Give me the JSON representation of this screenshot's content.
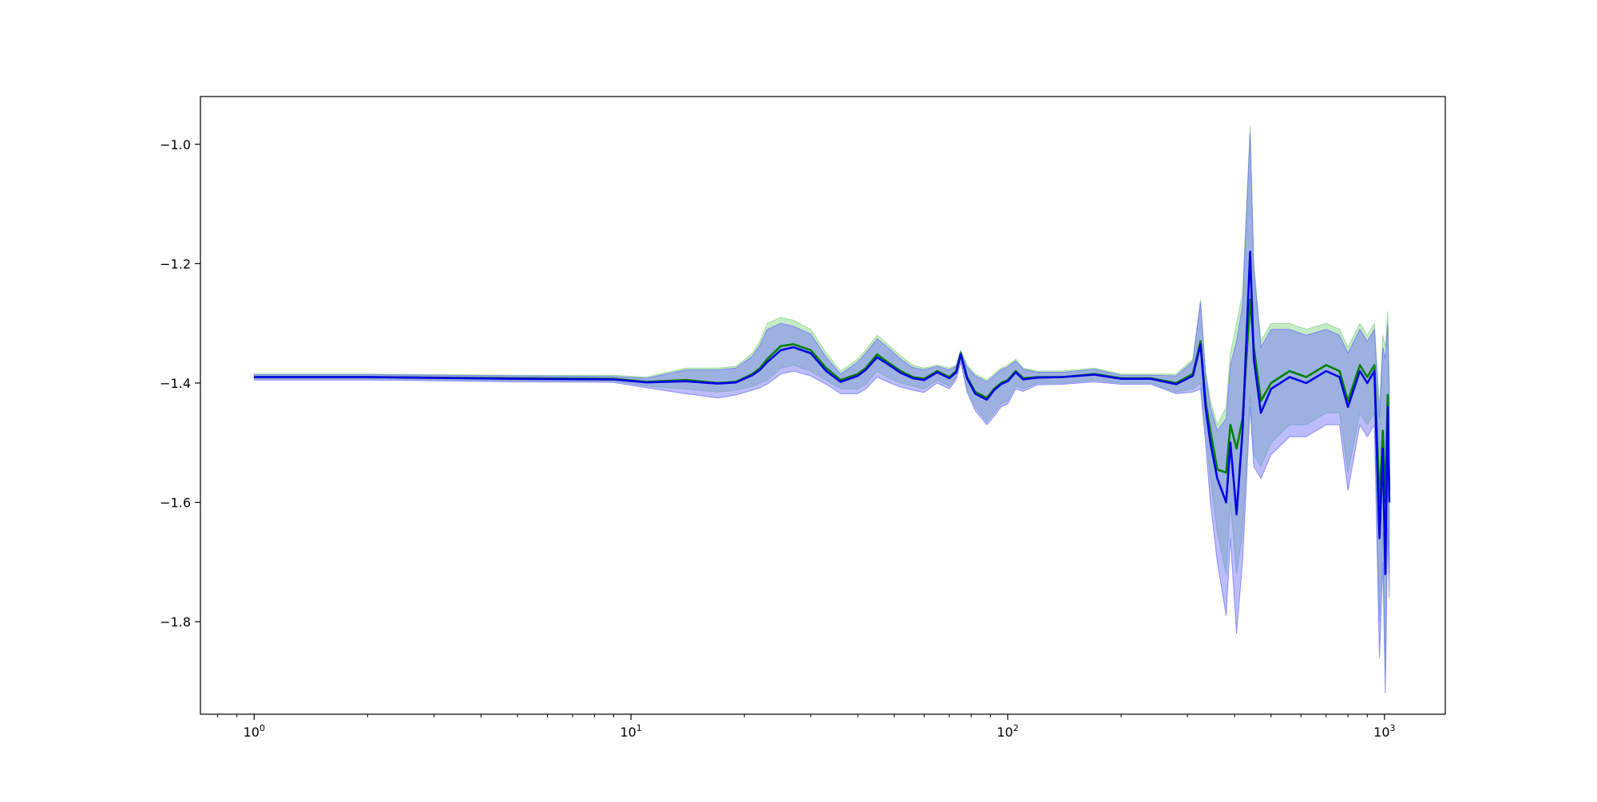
{
  "chart_data": {
    "type": "line",
    "title": "",
    "xlabel": "",
    "ylabel": "",
    "xscale": "log",
    "xlim": [
      0.72,
      1450
    ],
    "ylim": [
      -1.955,
      -0.92
    ],
    "grid": false,
    "x_ticks": [
      {
        "value": 1,
        "base": "10",
        "exp": "0"
      },
      {
        "value": 10,
        "base": "10",
        "exp": "1"
      },
      {
        "value": 100,
        "base": "10",
        "exp": "2"
      },
      {
        "value": 1000,
        "base": "10",
        "exp": "3"
      }
    ],
    "y_ticks": [
      {
        "value": -1.0,
        "label": "−1.0"
      },
      {
        "value": -1.2,
        "label": "−1.2"
      },
      {
        "value": -1.4,
        "label": "−1.4"
      },
      {
        "value": -1.6,
        "label": "−1.6"
      },
      {
        "value": -1.8,
        "label": "−1.8"
      }
    ],
    "colors": {
      "series_green": "#008000",
      "series_blue": "#0000e6",
      "band_green": "#7fd27f",
      "band_blue": "#6a6aff",
      "band_overlap": "#4f74b0"
    },
    "series": [
      {
        "color": "#008000",
        "x": [
          1,
          2,
          5,
          9,
          11,
          14,
          17,
          19,
          21,
          22,
          23,
          25,
          27,
          30,
          33,
          36,
          40,
          42,
          45,
          48,
          52,
          56,
          60,
          65,
          70,
          73,
          75,
          78,
          82,
          88,
          92,
          96,
          100,
          105,
          110,
          120,
          140,
          170,
          200,
          240,
          280,
          310,
          325,
          335,
          345,
          360,
          380,
          390,
          405,
          420,
          440,
          450,
          470,
          500,
          560,
          620,
          700,
          760,
          800,
          860,
          900,
          940,
          970,
          990,
          1005,
          1020,
          1030
        ],
        "y": [
          -1.39,
          -1.39,
          -1.392,
          -1.393,
          -1.398,
          -1.395,
          -1.4,
          -1.398,
          -1.385,
          -1.375,
          -1.36,
          -1.338,
          -1.335,
          -1.345,
          -1.375,
          -1.395,
          -1.385,
          -1.375,
          -1.352,
          -1.365,
          -1.38,
          -1.39,
          -1.393,
          -1.38,
          -1.39,
          -1.38,
          -1.35,
          -1.39,
          -1.415,
          -1.425,
          -1.41,
          -1.4,
          -1.395,
          -1.38,
          -1.392,
          -1.39,
          -1.39,
          -1.385,
          -1.392,
          -1.392,
          -1.4,
          -1.385,
          -1.33,
          -1.43,
          -1.48,
          -1.545,
          -1.55,
          -1.47,
          -1.51,
          -1.46,
          -1.26,
          -1.34,
          -1.43,
          -1.4,
          -1.38,
          -1.39,
          -1.37,
          -1.38,
          -1.43,
          -1.37,
          -1.39,
          -1.37,
          -1.6,
          -1.48,
          -1.6,
          -1.42,
          -1.58
        ]
      },
      {
        "color": "#0000e6",
        "x": [
          1,
          2,
          5,
          9,
          11,
          14,
          17,
          19,
          21,
          22,
          23,
          25,
          27,
          30,
          33,
          36,
          40,
          42,
          45,
          48,
          52,
          56,
          60,
          65,
          70,
          73,
          75,
          78,
          82,
          88,
          92,
          96,
          100,
          105,
          110,
          120,
          140,
          170,
          200,
          240,
          280,
          310,
          325,
          335,
          345,
          360,
          380,
          390,
          405,
          420,
          440,
          450,
          470,
          500,
          560,
          620,
          700,
          760,
          800,
          860,
          900,
          940,
          970,
          990,
          1005,
          1020,
          1030
        ],
        "y": [
          -1.39,
          -1.39,
          -1.393,
          -1.394,
          -1.399,
          -1.397,
          -1.401,
          -1.399,
          -1.387,
          -1.378,
          -1.365,
          -1.345,
          -1.34,
          -1.35,
          -1.38,
          -1.398,
          -1.388,
          -1.378,
          -1.357,
          -1.368,
          -1.383,
          -1.392,
          -1.395,
          -1.382,
          -1.392,
          -1.382,
          -1.352,
          -1.392,
          -1.418,
          -1.428,
          -1.412,
          -1.402,
          -1.397,
          -1.382,
          -1.394,
          -1.391,
          -1.39,
          -1.386,
          -1.393,
          -1.393,
          -1.402,
          -1.388,
          -1.335,
          -1.44,
          -1.5,
          -1.56,
          -1.6,
          -1.5,
          -1.62,
          -1.48,
          -1.18,
          -1.36,
          -1.45,
          -1.41,
          -1.39,
          -1.4,
          -1.38,
          -1.39,
          -1.44,
          -1.38,
          -1.4,
          -1.38,
          -1.66,
          -1.51,
          -1.72,
          -1.44,
          -1.6
        ]
      }
    ],
    "bands": [
      {
        "color": "#7fd27f",
        "x": [
          1,
          2,
          5,
          9,
          11,
          14,
          17,
          19,
          21,
          22,
          23,
          25,
          27,
          30,
          33,
          36,
          40,
          42,
          45,
          48,
          52,
          56,
          60,
          65,
          70,
          73,
          75,
          78,
          82,
          88,
          92,
          96,
          100,
          105,
          110,
          120,
          140,
          170,
          200,
          240,
          280,
          310,
          325,
          335,
          345,
          360,
          380,
          390,
          405,
          420,
          440,
          450,
          470,
          500,
          560,
          620,
          700,
          760,
          800,
          860,
          900,
          940,
          970,
          990,
          1005,
          1020,
          1030
        ],
        "upper": [
          -1.385,
          -1.385,
          -1.387,
          -1.387,
          -1.39,
          -1.375,
          -1.375,
          -1.372,
          -1.35,
          -1.33,
          -1.3,
          -1.29,
          -1.295,
          -1.31,
          -1.35,
          -1.38,
          -1.36,
          -1.345,
          -1.32,
          -1.335,
          -1.355,
          -1.37,
          -1.375,
          -1.37,
          -1.375,
          -1.37,
          -1.345,
          -1.37,
          -1.385,
          -1.395,
          -1.385,
          -1.375,
          -1.37,
          -1.36,
          -1.375,
          -1.38,
          -1.38,
          -1.375,
          -1.385,
          -1.385,
          -1.385,
          -1.36,
          -1.26,
          -1.38,
          -1.43,
          -1.47,
          -1.44,
          -1.35,
          -1.3,
          -1.25,
          -0.97,
          -1.2,
          -1.33,
          -1.3,
          -1.3,
          -1.31,
          -1.3,
          -1.31,
          -1.34,
          -1.3,
          -1.32,
          -1.3,
          -1.44,
          -1.32,
          -1.34,
          -1.28,
          -1.4
        ],
        "lower": [
          -1.393,
          -1.393,
          -1.396,
          -1.397,
          -1.405,
          -1.41,
          -1.415,
          -1.412,
          -1.405,
          -1.4,
          -1.395,
          -1.375,
          -1.37,
          -1.38,
          -1.395,
          -1.41,
          -1.41,
          -1.402,
          -1.38,
          -1.39,
          -1.4,
          -1.405,
          -1.41,
          -1.395,
          -1.405,
          -1.39,
          -1.36,
          -1.41,
          -1.44,
          -1.465,
          -1.45,
          -1.435,
          -1.43,
          -1.405,
          -1.41,
          -1.4,
          -1.4,
          -1.395,
          -1.4,
          -1.4,
          -1.415,
          -1.41,
          -1.4,
          -1.48,
          -1.56,
          -1.65,
          -1.72,
          -1.6,
          -1.72,
          -1.65,
          -1.42,
          -1.52,
          -1.54,
          -1.5,
          -1.47,
          -1.47,
          -1.45,
          -1.45,
          -1.55,
          -1.45,
          -1.47,
          -1.45,
          -1.8,
          -1.65,
          -1.88,
          -1.6,
          -1.72
        ]
      },
      {
        "color": "#6a6aff",
        "x": [
          1,
          2,
          5,
          9,
          11,
          14,
          17,
          19,
          21,
          22,
          23,
          25,
          27,
          30,
          33,
          36,
          40,
          42,
          45,
          48,
          52,
          56,
          60,
          65,
          70,
          73,
          75,
          78,
          82,
          88,
          92,
          96,
          100,
          105,
          110,
          120,
          140,
          170,
          200,
          240,
          280,
          310,
          325,
          335,
          345,
          360,
          380,
          390,
          405,
          420,
          440,
          450,
          470,
          500,
          560,
          620,
          700,
          760,
          800,
          860,
          900,
          940,
          970,
          990,
          1005,
          1020,
          1030
        ],
        "upper": [
          -1.386,
          -1.386,
          -1.388,
          -1.389,
          -1.392,
          -1.378,
          -1.378,
          -1.375,
          -1.355,
          -1.337,
          -1.31,
          -1.3,
          -1.305,
          -1.318,
          -1.357,
          -1.385,
          -1.365,
          -1.35,
          -1.326,
          -1.34,
          -1.36,
          -1.374,
          -1.378,
          -1.372,
          -1.378,
          -1.372,
          -1.347,
          -1.373,
          -1.388,
          -1.398,
          -1.388,
          -1.378,
          -1.373,
          -1.363,
          -1.377,
          -1.382,
          -1.382,
          -1.377,
          -1.387,
          -1.387,
          -1.388,
          -1.364,
          -1.265,
          -1.385,
          -1.44,
          -1.48,
          -1.46,
          -1.37,
          -1.33,
          -1.27,
          -0.98,
          -1.21,
          -1.34,
          -1.31,
          -1.31,
          -1.32,
          -1.31,
          -1.32,
          -1.35,
          -1.31,
          -1.33,
          -1.31,
          -1.46,
          -1.34,
          -1.36,
          -1.3,
          -1.42
        ],
        "lower": [
          -1.395,
          -1.395,
          -1.398,
          -1.399,
          -1.408,
          -1.418,
          -1.425,
          -1.42,
          -1.412,
          -1.408,
          -1.402,
          -1.385,
          -1.38,
          -1.388,
          -1.402,
          -1.418,
          -1.418,
          -1.41,
          -1.39,
          -1.398,
          -1.407,
          -1.412,
          -1.416,
          -1.4,
          -1.41,
          -1.394,
          -1.365,
          -1.415,
          -1.446,
          -1.47,
          -1.456,
          -1.44,
          -1.435,
          -1.41,
          -1.414,
          -1.403,
          -1.402,
          -1.398,
          -1.402,
          -1.402,
          -1.418,
          -1.415,
          -1.41,
          -1.5,
          -1.6,
          -1.7,
          -1.79,
          -1.66,
          -1.82,
          -1.7,
          -1.44,
          -1.54,
          -1.56,
          -1.52,
          -1.49,
          -1.49,
          -1.47,
          -1.47,
          -1.58,
          -1.47,
          -1.49,
          -1.47,
          -1.86,
          -1.7,
          -1.92,
          -1.64,
          -1.76
        ]
      }
    ]
  }
}
